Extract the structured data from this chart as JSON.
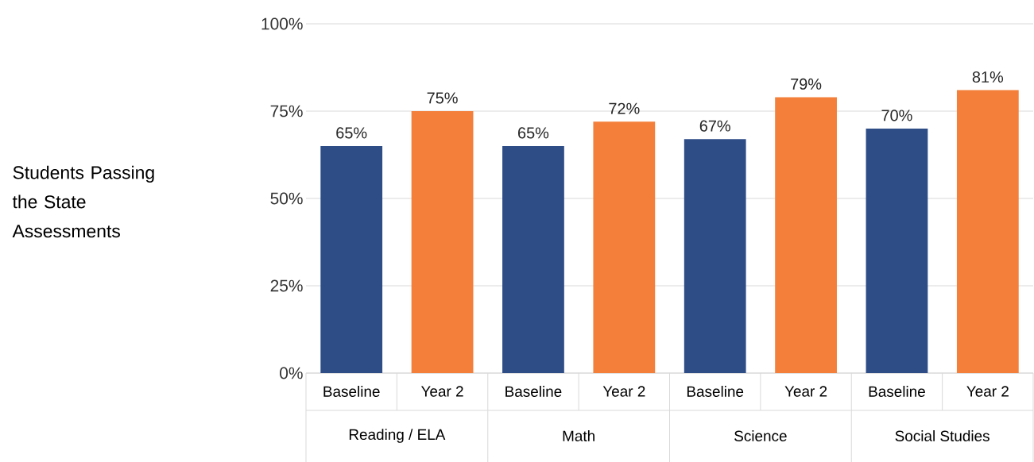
{
  "chart_data": {
    "type": "bar",
    "annotations": [
      "Students Passing the State Assessments"
    ],
    "categories": [
      "Reading / ELA",
      "Math",
      "Science",
      "Social Studies"
    ],
    "series": [
      {
        "name": "Baseline",
        "color": "#2e4d87",
        "values": [
          65,
          65,
          67,
          70
        ],
        "value_labels": [
          "65%",
          "65%",
          "67%",
          "70%"
        ]
      },
      {
        "name": "Year 2",
        "color": "#f37f3a",
        "values": [
          75,
          72,
          79,
          81
        ],
        "value_labels": [
          "75%",
          "72%",
          "79%",
          "81%"
        ]
      }
    ],
    "ylim": [
      0,
      100
    ],
    "yticks": [
      {
        "value": 0,
        "label": "0%"
      },
      {
        "value": 25,
        "label": "25%"
      },
      {
        "value": 50,
        "label": "50%"
      },
      {
        "value": 75,
        "label": "75%"
      },
      {
        "value": 100,
        "label": "100%"
      }
    ],
    "grid": "y"
  }
}
